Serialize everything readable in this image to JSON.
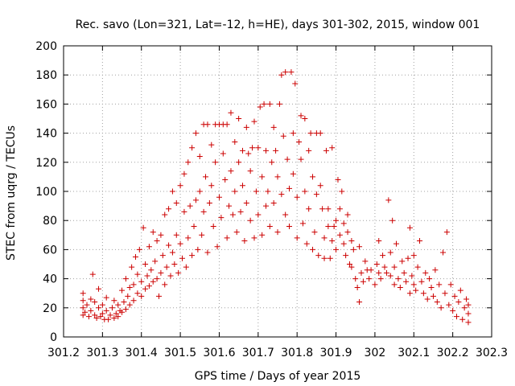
{
  "chart_data": {
    "type": "scatter",
    "title": "Rec. savo (Lon=321, Lat=-12, h=HE), days 301-302, 2015, window 001",
    "xlabel": "GPS time / Days of year 2015",
    "ylabel": "STEC from uqrg / TECUs",
    "xlim": [
      301.2,
      302.3
    ],
    "ylim": [
      0,
      200
    ],
    "xticks": [
      "301.2",
      "301.3",
      "301.4",
      "301.5",
      "301.6",
      "301.7",
      "301.8",
      "301.9",
      "302",
      "302.1",
      "302.2",
      "302.3"
    ],
    "yticks": [
      "0",
      "20",
      "40",
      "60",
      "80",
      "100",
      "120",
      "140",
      "160",
      "180",
      "200"
    ],
    "grid": true,
    "marker": "+",
    "color": "#cc0000",
    "series": [
      {
        "name": "",
        "points": [
          [
            301.25,
            15
          ],
          [
            301.25,
            20
          ],
          [
            301.25,
            25
          ],
          [
            301.25,
            30
          ],
          [
            301.255,
            17
          ],
          [
            301.26,
            22
          ],
          [
            301.265,
            14
          ],
          [
            301.27,
            18
          ],
          [
            301.27,
            26
          ],
          [
            301.275,
            43
          ],
          [
            301.28,
            15
          ],
          [
            301.28,
            24
          ],
          [
            301.285,
            13
          ],
          [
            301.29,
            20
          ],
          [
            301.29,
            33
          ],
          [
            301.295,
            14
          ],
          [
            301.3,
            16
          ],
          [
            301.3,
            22
          ],
          [
            301.305,
            12
          ],
          [
            301.31,
            18
          ],
          [
            301.31,
            27
          ],
          [
            301.315,
            12
          ],
          [
            301.32,
            15
          ],
          [
            301.325,
            20
          ],
          [
            301.33,
            13
          ],
          [
            301.33,
            25
          ],
          [
            301.335,
            16
          ],
          [
            301.34,
            14
          ],
          [
            301.34,
            22
          ],
          [
            301.345,
            18
          ],
          [
            301.35,
            17
          ],
          [
            301.35,
            32
          ],
          [
            301.355,
            24
          ],
          [
            301.36,
            19
          ],
          [
            301.36,
            40
          ],
          [
            301.365,
            28
          ],
          [
            301.37,
            22
          ],
          [
            301.37,
            34
          ],
          [
            301.375,
            48
          ],
          [
            301.38,
            25
          ],
          [
            301.38,
            36
          ],
          [
            301.385,
            55
          ],
          [
            301.39,
            30
          ],
          [
            301.39,
            43
          ],
          [
            301.395,
            60
          ],
          [
            301.4,
            28
          ],
          [
            301.4,
            38
          ],
          [
            301.405,
            75
          ],
          [
            301.41,
            33
          ],
          [
            301.41,
            50
          ],
          [
            301.415,
            42
          ],
          [
            301.42,
            35
          ],
          [
            301.42,
            62
          ],
          [
            301.425,
            46
          ],
          [
            301.43,
            38
          ],
          [
            301.43,
            72
          ],
          [
            301.435,
            52
          ],
          [
            301.44,
            40
          ],
          [
            301.44,
            66
          ],
          [
            301.445,
            28
          ],
          [
            301.45,
            44
          ],
          [
            301.45,
            70
          ],
          [
            301.455,
            56
          ],
          [
            301.46,
            36
          ],
          [
            301.46,
            84
          ],
          [
            301.465,
            48
          ],
          [
            301.47,
            63
          ],
          [
            301.47,
            88
          ],
          [
            301.475,
            42
          ],
          [
            301.48,
            58
          ],
          [
            301.48,
            100
          ],
          [
            301.485,
            50
          ],
          [
            301.49,
            70
          ],
          [
            301.49,
            92
          ],
          [
            301.495,
            44
          ],
          [
            301.5,
            64
          ],
          [
            301.5,
            104
          ],
          [
            301.505,
            54
          ],
          [
            301.51,
            86
          ],
          [
            301.51,
            112
          ],
          [
            301.515,
            48
          ],
          [
            301.52,
            68
          ],
          [
            301.52,
            120
          ],
          [
            301.525,
            90
          ],
          [
            301.53,
            56
          ],
          [
            301.53,
            130
          ],
          [
            301.535,
            76
          ],
          [
            301.54,
            94
          ],
          [
            301.54,
            140
          ],
          [
            301.545,
            60
          ],
          [
            301.55,
            100
          ],
          [
            301.55,
            124
          ],
          [
            301.555,
            70
          ],
          [
            301.56,
            146
          ],
          [
            301.56,
            86
          ],
          [
            301.565,
            110
          ],
          [
            301.57,
            58
          ],
          [
            301.57,
            146
          ],
          [
            301.575,
            92
          ],
          [
            301.58,
            132
          ],
          [
            301.58,
            104
          ],
          [
            301.585,
            76
          ],
          [
            301.59,
            146
          ],
          [
            301.59,
            120
          ],
          [
            301.595,
            62
          ],
          [
            301.6,
            146
          ],
          [
            301.6,
            96
          ],
          [
            301.605,
            82
          ],
          [
            301.61,
            126
          ],
          [
            301.61,
            146
          ],
          [
            301.615,
            108
          ],
          [
            301.62,
            68
          ],
          [
            301.62,
            146
          ],
          [
            301.625,
            90
          ],
          [
            301.63,
            154
          ],
          [
            301.63,
            114
          ],
          [
            301.635,
            84
          ],
          [
            301.64,
            134
          ],
          [
            301.64,
            100
          ],
          [
            301.645,
            72
          ],
          [
            301.65,
            150
          ],
          [
            301.65,
            120
          ],
          [
            301.655,
            86
          ],
          [
            301.66,
            128
          ],
          [
            301.66,
            104
          ],
          [
            301.665,
            66
          ],
          [
            301.67,
            144
          ],
          [
            301.67,
            92
          ],
          [
            301.675,
            126
          ],
          [
            301.68,
            80
          ],
          [
            301.68,
            114
          ],
          [
            301.685,
            130
          ],
          [
            301.69,
            68
          ],
          [
            301.69,
            148
          ],
          [
            301.695,
            100
          ],
          [
            301.7,
            130
          ],
          [
            301.7,
            84
          ],
          [
            301.705,
            158
          ],
          [
            301.71,
            110
          ],
          [
            301.71,
            70
          ],
          [
            301.715,
            160
          ],
          [
            301.72,
            128
          ],
          [
            301.72,
            90
          ],
          [
            301.725,
            100
          ],
          [
            301.73,
            160
          ],
          [
            301.73,
            76
          ],
          [
            301.735,
            120
          ],
          [
            301.74,
            144
          ],
          [
            301.74,
            92
          ],
          [
            301.745,
            128
          ],
          [
            301.75,
            72
          ],
          [
            301.75,
            110
          ],
          [
            301.755,
            160
          ],
          [
            301.76,
            98
          ],
          [
            301.76,
            180
          ],
          [
            301.765,
            138
          ],
          [
            301.77,
            84
          ],
          [
            301.77,
            182
          ],
          [
            301.775,
            122
          ],
          [
            301.78,
            102
          ],
          [
            301.78,
            76
          ],
          [
            301.785,
            182
          ],
          [
            301.79,
            140
          ],
          [
            301.79,
            112
          ],
          [
            301.795,
            174
          ],
          [
            301.8,
            68
          ],
          [
            301.8,
            96
          ],
          [
            301.805,
            134
          ],
          [
            301.81,
            152
          ],
          [
            301.81,
            122
          ],
          [
            301.815,
            78
          ],
          [
            301.82,
            100
          ],
          [
            301.82,
            150
          ],
          [
            301.825,
            64
          ],
          [
            301.83,
            128
          ],
          [
            301.83,
            88
          ],
          [
            301.835,
            140
          ],
          [
            301.84,
            60
          ],
          [
            301.84,
            110
          ],
          [
            301.845,
            72
          ],
          [
            301.85,
            140
          ],
          [
            301.85,
            98
          ],
          [
            301.855,
            56
          ],
          [
            301.86,
            104
          ],
          [
            301.86,
            140
          ],
          [
            301.865,
            88
          ],
          [
            301.87,
            68
          ],
          [
            301.87,
            54
          ],
          [
            301.875,
            128
          ],
          [
            301.88,
            76
          ],
          [
            301.88,
            88
          ],
          [
            301.885,
            54
          ],
          [
            301.89,
            130
          ],
          [
            301.89,
            66
          ],
          [
            301.895,
            76
          ],
          [
            301.9,
            60
          ],
          [
            301.9,
            80
          ],
          [
            301.905,
            108
          ],
          [
            301.91,
            88
          ],
          [
            301.91,
            70
          ],
          [
            301.915,
            100
          ],
          [
            301.92,
            64
          ],
          [
            301.92,
            78
          ],
          [
            301.925,
            56
          ],
          [
            301.93,
            84
          ],
          [
            301.93,
            72
          ],
          [
            301.935,
            50
          ],
          [
            301.94,
            66
          ],
          [
            301.94,
            48
          ],
          [
            301.945,
            60
          ],
          [
            301.95,
            40
          ],
          [
            301.955,
            34
          ],
          [
            301.96,
            62
          ],
          [
            301.96,
            24
          ],
          [
            301.965,
            44
          ],
          [
            301.97,
            38
          ],
          [
            301.975,
            52
          ],
          [
            301.98,
            46
          ],
          [
            301.985,
            40
          ],
          [
            301.99,
            46
          ],
          [
            302.0,
            36
          ],
          [
            302.005,
            50
          ],
          [
            302.01,
            44
          ],
          [
            302.01,
            66
          ],
          [
            302.015,
            40
          ],
          [
            302.02,
            56
          ],
          [
            302.025,
            48
          ],
          [
            302.03,
            44
          ],
          [
            302.035,
            94
          ],
          [
            302.04,
            42
          ],
          [
            302.04,
            58
          ],
          [
            302.045,
            80
          ],
          [
            302.05,
            36
          ],
          [
            302.05,
            48
          ],
          [
            302.055,
            64
          ],
          [
            302.06,
            40
          ],
          [
            302.065,
            34
          ],
          [
            302.07,
            52
          ],
          [
            302.075,
            44
          ],
          [
            302.08,
            38
          ],
          [
            302.085,
            54
          ],
          [
            302.09,
            30
          ],
          [
            302.09,
            75
          ],
          [
            302.095,
            42
          ],
          [
            302.1,
            36
          ],
          [
            302.1,
            56
          ],
          [
            302.105,
            32
          ],
          [
            302.11,
            48
          ],
          [
            302.115,
            66
          ],
          [
            302.12,
            38
          ],
          [
            302.125,
            30
          ],
          [
            302.13,
            44
          ],
          [
            302.135,
            26
          ],
          [
            302.14,
            40
          ],
          [
            302.145,
            34
          ],
          [
            302.15,
            28
          ],
          [
            302.155,
            46
          ],
          [
            302.16,
            24
          ],
          [
            302.165,
            36
          ],
          [
            302.17,
            20
          ],
          [
            302.175,
            58
          ],
          [
            302.18,
            30
          ],
          [
            302.185,
            72
          ],
          [
            302.19,
            22
          ],
          [
            302.195,
            36
          ],
          [
            302.2,
            18
          ],
          [
            302.205,
            28
          ],
          [
            302.21,
            14
          ],
          [
            302.215,
            24
          ],
          [
            302.22,
            32
          ],
          [
            302.225,
            12
          ],
          [
            302.23,
            20
          ],
          [
            302.235,
            26
          ],
          [
            302.24,
            16
          ],
          [
            302.24,
            10
          ],
          [
            302.24,
            22
          ]
        ]
      }
    ]
  }
}
